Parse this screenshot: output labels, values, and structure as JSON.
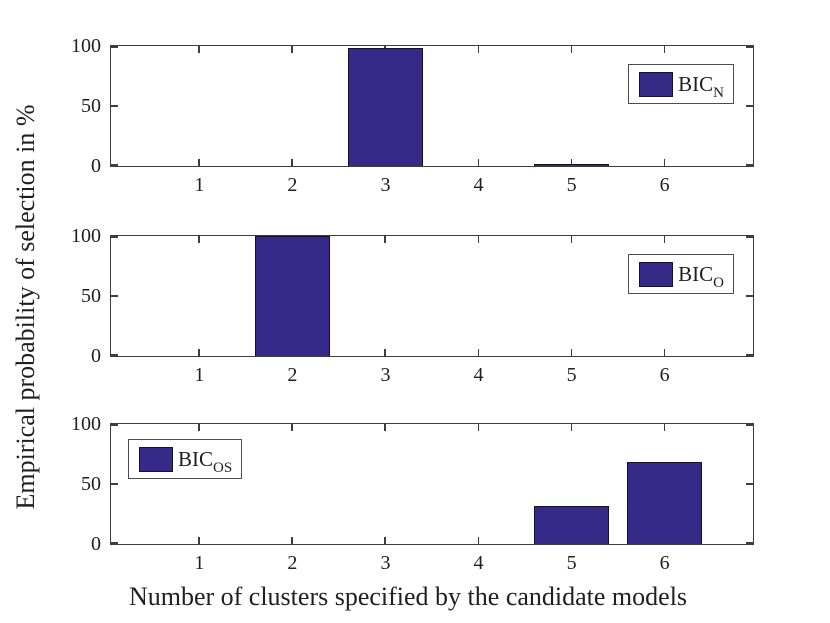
{
  "figure": {
    "xlabel": "Number of clusters specified by the candidate models",
    "ylabel": "Empirical probability of selection in %"
  },
  "colors": {
    "bar_fill": "#352A87",
    "bar_edge": "#13122e",
    "axis_frame": "#3E3E3E",
    "legend_border": "#4d4d4d",
    "text": "#1f1f1f",
    "background": "#ffffff"
  },
  "chart_data": [
    {
      "type": "bar",
      "categories": [
        1,
        2,
        3,
        4,
        5,
        6
      ],
      "values": [
        0,
        0,
        98,
        0,
        1,
        0
      ],
      "legend": {
        "base": "BIC",
        "subscript": "N"
      },
      "legend_position": "northeast",
      "xlim": [
        0.05,
        6.95
      ],
      "ylim": [
        0,
        100
      ],
      "yticks": [
        0,
        50,
        100
      ],
      "bar_width": 0.8,
      "grid": false
    },
    {
      "type": "bar",
      "categories": [
        1,
        2,
        3,
        4,
        5,
        6
      ],
      "values": [
        0,
        100,
        0,
        0,
        0,
        0
      ],
      "legend": {
        "base": "BIC",
        "subscript": "O"
      },
      "legend_position": "northeast",
      "xlim": [
        0.05,
        6.95
      ],
      "ylim": [
        0,
        100
      ],
      "yticks": [
        0,
        50,
        100
      ],
      "bar_width": 0.8,
      "grid": false
    },
    {
      "type": "bar",
      "categories": [
        1,
        2,
        3,
        4,
        5,
        6
      ],
      "values": [
        0,
        0,
        0,
        0,
        32,
        68
      ],
      "legend": {
        "base": "BIC",
        "subscript": "OS"
      },
      "legend_position": "northwest",
      "xlim": [
        0.05,
        6.95
      ],
      "ylim": [
        0,
        100
      ],
      "yticks": [
        0,
        50,
        100
      ],
      "bar_width": 0.8,
      "grid": false
    }
  ]
}
